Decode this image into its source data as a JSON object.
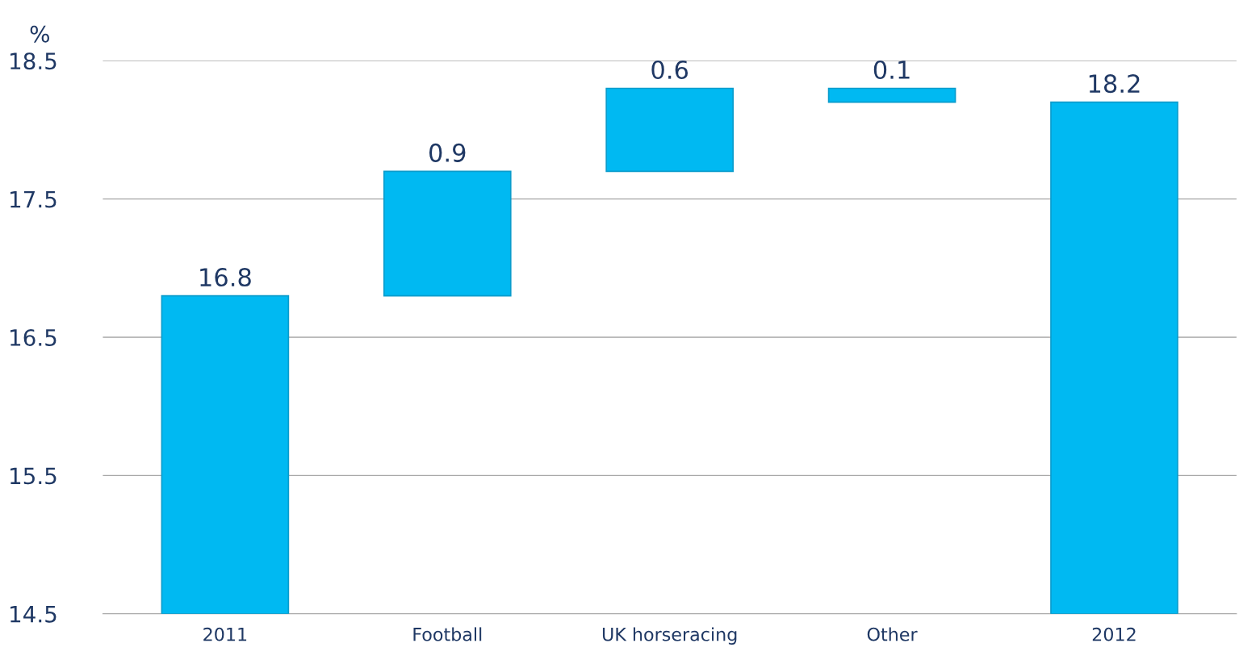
{
  "chart_data": {
    "type": "bar",
    "ylabel": "%",
    "categories": [
      "2011",
      "Football",
      "UK horseracing",
      "Other",
      "2012"
    ],
    "base": [
      14.5,
      16.8,
      17.7,
      18.3,
      14.5
    ],
    "values": [
      2.3,
      0.9,
      0.6,
      -0.1,
      3.7
    ],
    "value_labels": [
      "16.8",
      "0.9",
      "0.6",
      "0.1",
      "18.2"
    ],
    "color": "#00b9f2",
    "ylim": [
      14.5,
      18.5
    ],
    "yticks": [
      14.5,
      15.5,
      16.5,
      17.5,
      18.5
    ],
    "grid": "y"
  }
}
